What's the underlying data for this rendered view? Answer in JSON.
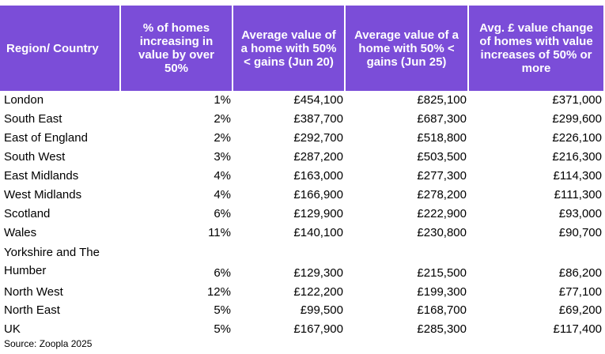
{
  "table": {
    "headers": [
      "Region/ Country",
      "% of homes increasing in value by over 50%",
      "Average value of a home with 50%< gains (Jun 20)",
      "Average value of a home with 50% < gains (Jun 25)",
      "Avg. £ value change of homes with value increases of 50% or more"
    ],
    "rows": [
      {
        "region": "London",
        "pct": "1%",
        "jun20": "£454,100",
        "jun25": "£825,100",
        "change": "£371,000"
      },
      {
        "region": "South East",
        "pct": "2%",
        "jun20": "£387,700",
        "jun25": "£687,300",
        "change": "£299,600"
      },
      {
        "region": "East of England",
        "pct": "2%",
        "jun20": "£292,700",
        "jun25": "£518,800",
        "change": "£226,100"
      },
      {
        "region": "South West",
        "pct": "3%",
        "jun20": "£287,200",
        "jun25": "£503,500",
        "change": "£216,300"
      },
      {
        "region": "East Midlands",
        "pct": "4%",
        "jun20": "£163,000",
        "jun25": "£277,300",
        "change": "£114,300"
      },
      {
        "region": "West Midlands",
        "pct": "4%",
        "jun20": "£166,900",
        "jun25": "£278,200",
        "change": "£111,300"
      },
      {
        "region": "Scotland",
        "pct": "6%",
        "jun20": "£129,900",
        "jun25": "£222,900",
        "change": "£93,000"
      },
      {
        "region": "Wales",
        "pct": "11%",
        "jun20": "£140,100",
        "jun25": "£230,800",
        "change": "£90,700"
      },
      {
        "region": "Yorkshire and The Humber",
        "pct": "6%",
        "jun20": "£129,300",
        "jun25": "£215,500",
        "change": "£86,200"
      },
      {
        "region": "North West",
        "pct": "12%",
        "jun20": "£122,200",
        "jun25": "£199,300",
        "change": "£77,100"
      },
      {
        "region": "North East",
        "pct": "5%",
        "jun20": "£99,500",
        "jun25": "£168,700",
        "change": "£69,200"
      },
      {
        "region": "UK",
        "pct": "5%",
        "jun20": "£167,900",
        "jun25": "£285,300",
        "change": "£117,400"
      }
    ]
  },
  "source": "Source: Zoopla 2025",
  "colors": {
    "header_bg": "#7b4dd8",
    "header_text": "#ffffff"
  }
}
